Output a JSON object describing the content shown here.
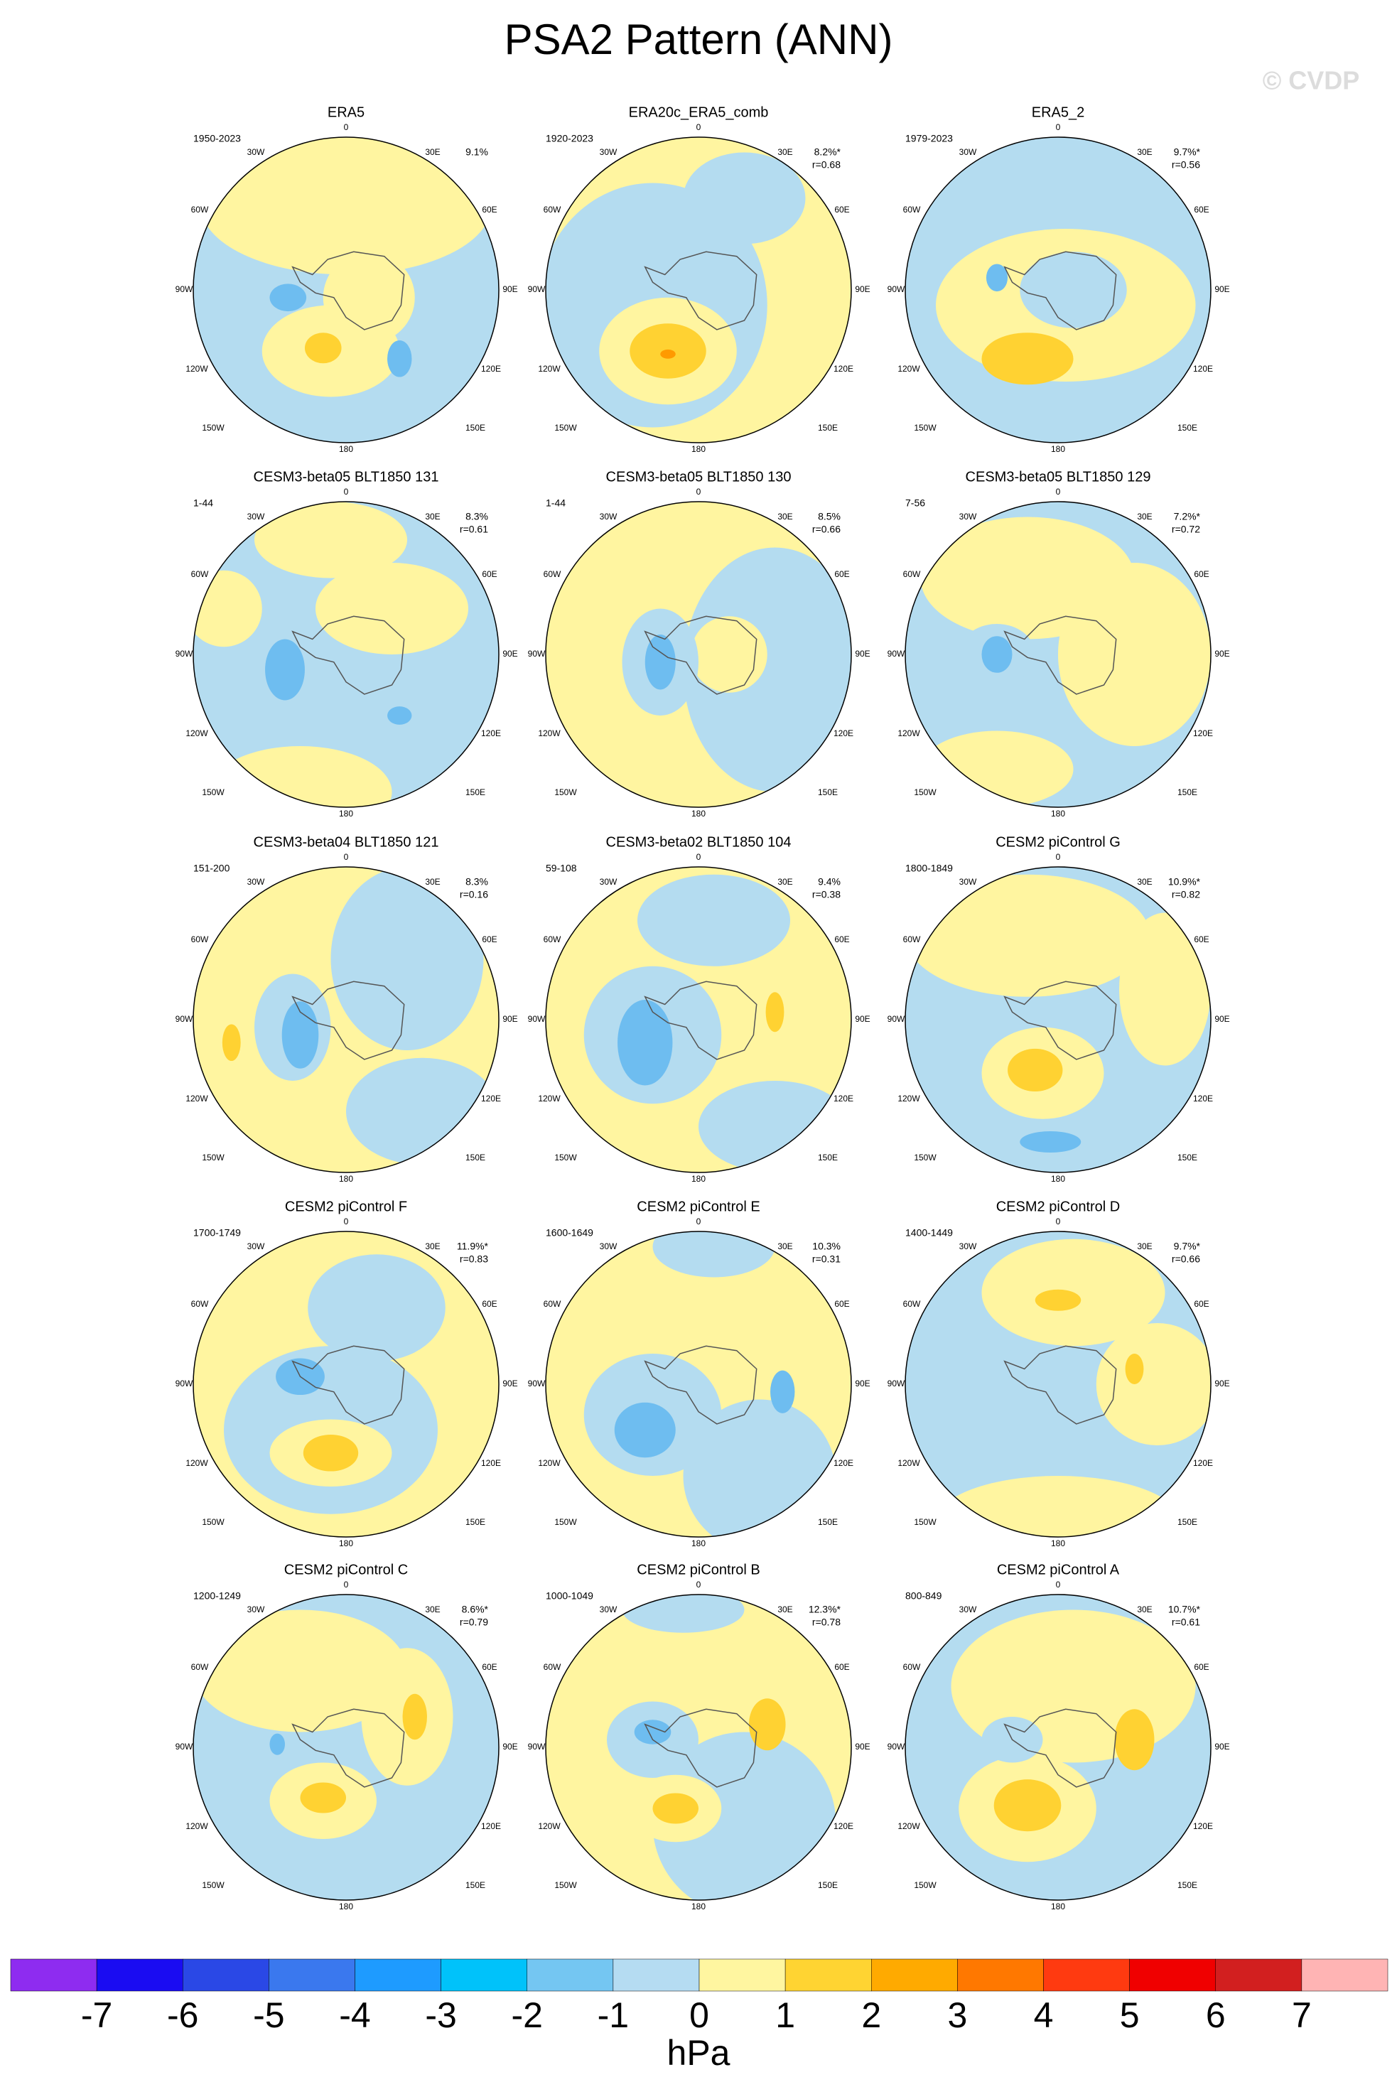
{
  "title": "PSA2 Pattern (ANN)",
  "watermark": "© CVDP",
  "lon_labels": [
    "0",
    "30E",
    "60E",
    "90E",
    "120E",
    "150E",
    "180",
    "150W",
    "120W",
    "90W",
    "60W",
    "30W"
  ],
  "panels": [
    {
      "title": "ERA5",
      "years": "1950-2023",
      "pct": "9.1%"
    },
    {
      "title": "ERA20c_ERA5_comb",
      "years": "1920-2023",
      "pct": "8.2%*",
      "r": "r=0.68"
    },
    {
      "title": "ERA5_2",
      "years": "1979-2023",
      "pct": "9.7%*",
      "r": "r=0.56"
    },
    {
      "title": "CESM3-beta05 BLT1850 131",
      "years": "1-44",
      "pct": "8.3%",
      "r": "r=0.61"
    },
    {
      "title": "CESM3-beta05 BLT1850 130",
      "years": "1-44",
      "pct": "8.5%",
      "r": "r=0.66"
    },
    {
      "title": "CESM3-beta05 BLT1850 129",
      "years": "7-56",
      "pct": "7.2%*",
      "r": "r=0.72"
    },
    {
      "title": "CESM3-beta04 BLT1850 121",
      "years": "151-200",
      "pct": "8.3%",
      "r": "r=0.16"
    },
    {
      "title": "CESM3-beta02 BLT1850 104",
      "years": "59-108",
      "pct": "9.4%",
      "r": "r=0.38"
    },
    {
      "title": "CESM2 piControl G",
      "years": "1800-1849",
      "pct": "10.9%*",
      "r": "r=0.82"
    },
    {
      "title": "CESM2 piControl F",
      "years": "1700-1749",
      "pct": "11.9%*",
      "r": "r=0.83"
    },
    {
      "title": "CESM2 piControl E",
      "years": "1600-1649",
      "pct": "10.3%",
      "r": "r=0.31"
    },
    {
      "title": "CESM2 piControl D",
      "years": "1400-1449",
      "pct": "9.7%*",
      "r": "r=0.66"
    },
    {
      "title": "CESM2 piControl C",
      "years": "1200-1249",
      "pct": "8.6%*",
      "r": "r=0.79"
    },
    {
      "title": "CESM2 piControl B",
      "years": "1000-1049",
      "pct": "12.3%*",
      "r": "r=0.78"
    },
    {
      "title": "CESM2 piControl A",
      "years": "800-849",
      "pct": "10.7%*",
      "r": "r=0.61"
    }
  ],
  "colorbar": {
    "levels": [
      -7,
      -6,
      -5,
      -4,
      -3,
      -2,
      -1,
      0,
      1,
      2,
      3,
      4,
      5,
      6,
      7
    ],
    "colors": [
      "#8e2cf0",
      "#1a0cf2",
      "#2a48e6",
      "#3a78ee",
      "#1e9bff",
      "#00c2fa",
      "#74c6f2",
      "#b5dcf2",
      "#fff6a0",
      "#ffd432",
      "#ffaa00",
      "#ff7800",
      "#ff3a10",
      "#f00000",
      "#d21f1f",
      "#ffb4b4"
    ],
    "units": "hPa"
  }
}
